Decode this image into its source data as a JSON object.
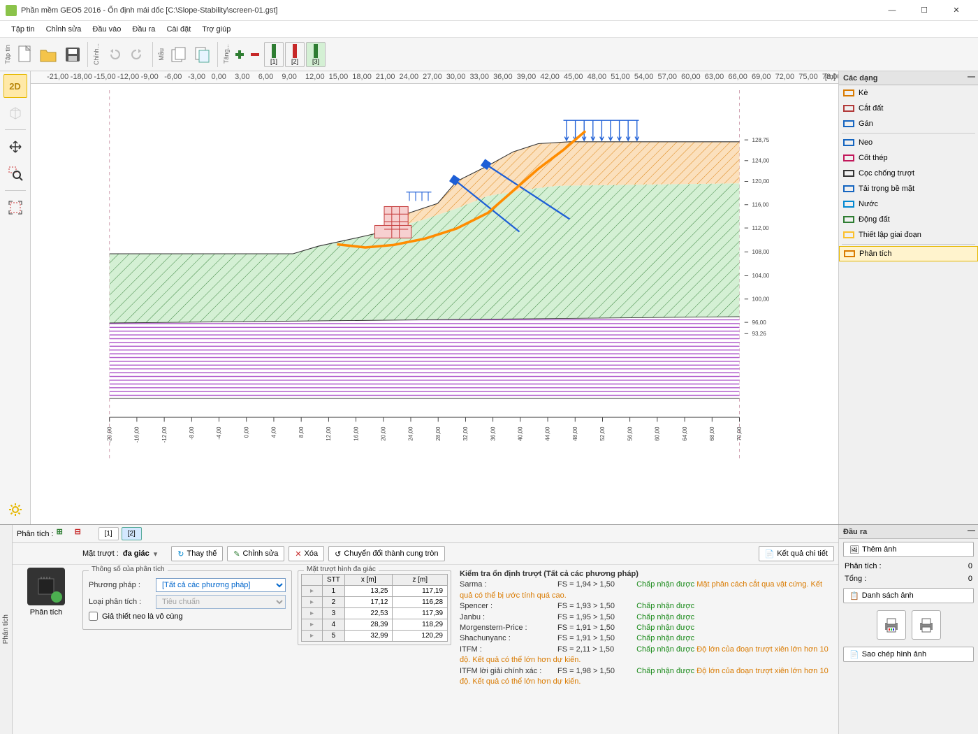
{
  "window": {
    "title": "Phần mềm GEO5 2016 - Ổn định mái dốc [C:\\Slope-Stability\\screen-01.gst]"
  },
  "menu": [
    "Tập tin",
    "Chỉnh sửa",
    "Đầu vào",
    "Đầu ra",
    "Cài đặt",
    "Trợ giúp"
  ],
  "toolbar_labels": {
    "file": "Tập tin",
    "edit": "Chỉnh...",
    "template": "Mẫu",
    "incr": "Tăng..."
  },
  "stages": [
    "[1]",
    "[2]",
    "[3]"
  ],
  "stage_colors": [
    "#2e7d32",
    "#c62828",
    "#2e7d32"
  ],
  "active_stage": 2,
  "ruler_x": {
    "min": -21,
    "max": 78,
    "step": 3,
    "unit": "[m]"
  },
  "y_axis": {
    "labels": [
      "128,75",
      "124,00",
      "120,00",
      "116,00",
      "112,00",
      "108,00",
      "104,00",
      "100,00",
      "96,00",
      "93,26"
    ]
  },
  "x_axis_bottom": [
    "-20,00",
    "-16,00",
    "-12,00",
    "-8,00",
    "-4,00",
    "0,00",
    "4,00",
    "8,00",
    "12,00",
    "16,00",
    "20,00",
    "24,00",
    "28,00",
    "32,00",
    "36,00",
    "40,00",
    "44,00",
    "48,00",
    "52,00",
    "56,00",
    "60,00",
    "64,00",
    "68,00",
    "70,00"
  ],
  "right_panel": {
    "header": "Các dạng",
    "items": [
      {
        "label": "Kè",
        "color": "#d97a00"
      },
      {
        "label": "Cắt đất",
        "color": "#b23a3a"
      },
      {
        "label": "Gán",
        "color": "#1565c0"
      },
      {
        "label": "Neo",
        "color": "#1565c0"
      },
      {
        "label": "Cốt thép",
        "color": "#c2185b"
      },
      {
        "label": "Cọc chống trượt",
        "color": "#333"
      },
      {
        "label": "Tải trọng bề mặt",
        "color": "#1565c0"
      },
      {
        "label": "Nước",
        "color": "#0288d1"
      },
      {
        "label": "Động đất",
        "color": "#2e7d32"
      },
      {
        "label": "Thiết lập giai đoạn",
        "color": "#fbc02d"
      },
      {
        "label": "Phân tích",
        "color": "#d97a00",
        "active": true
      }
    ]
  },
  "bottom": {
    "tab_label": "Phân tích",
    "analysis_label": "Phân tích :",
    "stage_btns": [
      "[1]",
      "[2]"
    ],
    "active_btn": 1,
    "toolbar": {
      "slip_label": "Mặt trượt :",
      "slip_value": "đa giác",
      "replace": "Thay thế",
      "edit": "Chỉnh sửa",
      "delete": "Xóa",
      "convert": "Chuyển đổi thành cung tròn",
      "detail": "Kết quả chi tiết"
    },
    "fs_params": {
      "legend": "Thông số của phân tích",
      "method_label": "Phương pháp :",
      "method_value": "[Tất cả các phương pháp]",
      "type_label": "Loại phân tích :",
      "type_value": "Tiêu chuẩn",
      "anchor_cb": "Giả thiết neo là vô cùng"
    },
    "poly": {
      "legend": "Mặt trượt hình đa giác",
      "cols": [
        "STT",
        "x [m]",
        "z [m]"
      ],
      "rows": [
        [
          "1",
          "13,25",
          "117,19"
        ],
        [
          "2",
          "17,12",
          "116,28"
        ],
        [
          "3",
          "22,53",
          "117,39"
        ],
        [
          "4",
          "28,39",
          "118,29"
        ],
        [
          "5",
          "32,99",
          "120,29"
        ]
      ]
    },
    "results": {
      "title": "Kiểm tra ổn định trượt (Tất cả các phương pháp)",
      "lines": [
        {
          "m": "Sarma :",
          "fs": "FS = 1,94 > 1,50",
          "s": "Chấp nhận được",
          "n": "Mặt phân cách cắt qua vật cứng. Kết quả có thể bị ước tính quá cao."
        },
        {
          "m": "Spencer :",
          "fs": "FS = 1,93 > 1,50",
          "s": "Chấp nhận được"
        },
        {
          "m": "Janbu :",
          "fs": "FS = 1,95 > 1,50",
          "s": "Chấp nhận được"
        },
        {
          "m": "Morgenstern-Price :",
          "fs": "FS = 1,91 > 1,50",
          "s": "Chấp nhận được"
        },
        {
          "m": "Shachunyanc :",
          "fs": "FS = 1,91 > 1,50",
          "s": "Chấp nhận được"
        },
        {
          "m": "ITFM :",
          "fs": "FS = 2,11 > 1,50",
          "s": "Chấp nhận được",
          "n": "Độ lớn của đoạn trượt xiên lớn hơn 10 độ. Kết quả có thể lớn hơn dự kiến."
        },
        {
          "m": "ITFM lời giải chính xác :",
          "fs": "FS = 1,98 > 1,50",
          "s": "Chấp nhận được",
          "n": "Độ lớn của đoạn trượt xiên lớn hơn 10 độ. Kết quả có thể lớn hơn dự kiến."
        }
      ]
    },
    "output": {
      "header": "Đầu ra",
      "add_img": "Thêm ảnh",
      "analysis": "Phân tích :",
      "analysis_n": "0",
      "total": "Tổng :",
      "total_n": "0",
      "img_list": "Danh sách ảnh",
      "copy": "Sao chép hình ảnh"
    }
  },
  "diagram": {
    "colors": {
      "layer1": "#f7c388",
      "layer1_hatch": "#d97a00",
      "layer2": "#a8e0a8",
      "layer2_hatch": "#2e7d32",
      "layer3": "#fff",
      "layer3_hatch": "#aa4ec7",
      "slip": "#ff8c00",
      "anchor": "#1e5fd6",
      "load": "#1e5fd6",
      "wall": "#e06666",
      "grid": "#eee"
    }
  }
}
